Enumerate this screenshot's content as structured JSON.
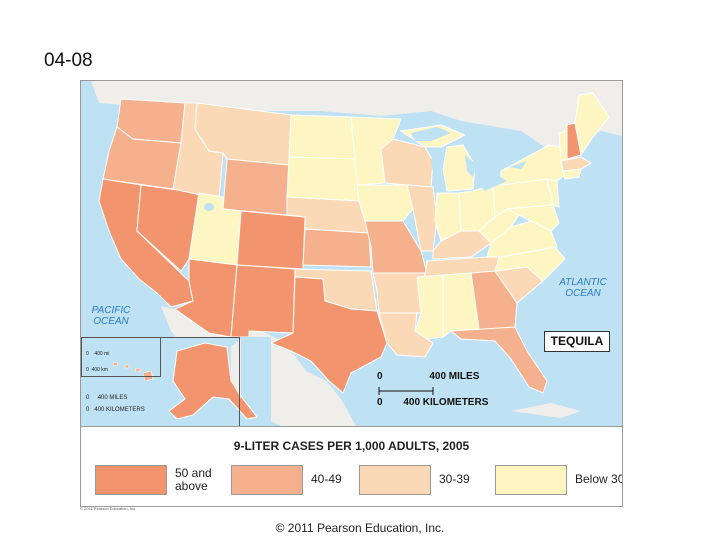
{
  "slide": {
    "title": "04-08",
    "footer": "© 2011 Pearson Education, Inc."
  },
  "map": {
    "title": "TEQUILA",
    "ocean_pacific": "PACIFIC\nOCEAN",
    "ocean_atlantic": "ATLANTIC\nOCEAN",
    "scale_miles": "400 MILES",
    "scale_km": "400 KILOMETERS",
    "scale_zero": "0",
    "hawaii_scale_mi": "400 mi",
    "hawaii_scale_km": "400 km",
    "alaska_scale_mi": "400 MILES",
    "alaska_scale_km": "400 KILOMETERS",
    "small_copyright": "© 2011 Pearson Education, Inc.",
    "legend": {
      "title": "9-LITER CASES PER 1,000 ADULTS, 2005",
      "items": [
        {
          "label": "50 and above",
          "color": "#f2956e"
        },
        {
          "label": "40-49",
          "color": "#f5b08e"
        },
        {
          "label": "30-39",
          "color": "#fbd9b6"
        },
        {
          "label": "Below 30",
          "color": "#fdf6c3"
        }
      ]
    },
    "colors": {
      "water": "#bfe1f4",
      "land_outside": "#f0eeea",
      "border": "#ffffff"
    }
  }
}
